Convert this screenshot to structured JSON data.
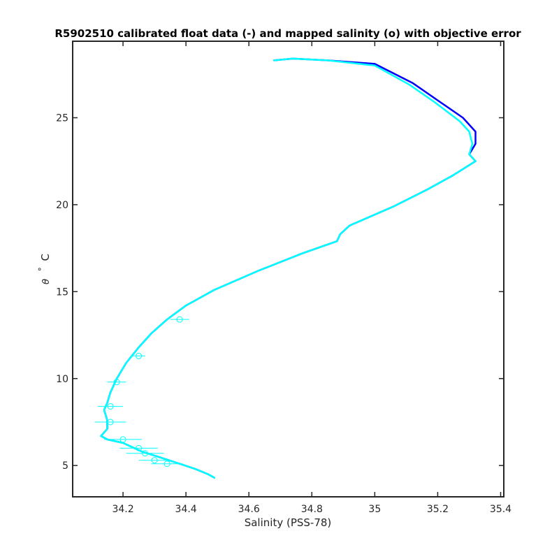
{
  "chart_data": {
    "type": "line",
    "title": "R5902510 calibrated float data (-) and mapped salinity (o) with objective error",
    "xlabel": "Salinity (PSS-78)",
    "ylabel_symbol": "θ",
    "ylabel_degree": "°",
    "ylabel_unit": "C",
    "xlim": [
      34.04,
      35.41
    ],
    "ylim": [
      3.2,
      29.4
    ],
    "xticks": [
      34.2,
      34.4,
      34.6,
      34.8,
      35,
      35.2,
      35.4
    ],
    "xtick_labels": [
      "34.2",
      "34.4",
      "34.6",
      "34.8",
      "35",
      "35.2",
      "35.4"
    ],
    "yticks": [
      5,
      10,
      15,
      20,
      25
    ],
    "ytick_labels": [
      "5",
      "10",
      "15",
      "20",
      "25"
    ],
    "grid": false,
    "colors": {
      "float_line": "#0000ff",
      "calibrated_line": "#00ffff",
      "axes": "#262626"
    },
    "series": [
      {
        "key": "float",
        "color": "#0000ff",
        "x": [
          34.68,
          34.74,
          34.85,
          35.0,
          35.12,
          35.2,
          35.28,
          35.32,
          35.32,
          35.3,
          35.32,
          35.25,
          35.17,
          35.06,
          34.92,
          34.89,
          34.88,
          34.77,
          34.63,
          34.49,
          34.4,
          34.34,
          34.29,
          34.25,
          34.21,
          34.18,
          34.16,
          34.15,
          34.14,
          34.15,
          34.15,
          34.14,
          34.13,
          34.15,
          34.2,
          34.26,
          34.33,
          34.38,
          34.43,
          34.47,
          34.49
        ],
        "y": [
          28.3,
          28.4,
          28.3,
          28.1,
          27.0,
          26.0,
          25.0,
          24.2,
          23.5,
          22.9,
          22.5,
          21.7,
          20.9,
          19.9,
          18.8,
          18.3,
          17.9,
          17.2,
          16.2,
          15.1,
          14.2,
          13.4,
          12.6,
          11.8,
          10.9,
          10.0,
          9.2,
          8.6,
          8.2,
          7.6,
          7.1,
          6.9,
          6.7,
          6.5,
          6.3,
          5.8,
          5.4,
          5.1,
          4.8,
          4.5,
          4.3
        ]
      },
      {
        "key": "calibrated",
        "color": "#00ffff",
        "x": [
          34.68,
          34.74,
          34.85,
          35.0,
          35.11,
          35.19,
          35.27,
          35.3,
          35.31,
          35.3,
          35.32,
          35.25,
          35.17,
          35.06,
          34.92,
          34.89,
          34.88,
          34.77,
          34.63,
          34.49,
          34.4,
          34.34,
          34.29,
          34.25,
          34.21,
          34.18,
          34.16,
          34.15,
          34.14,
          34.15,
          34.15,
          34.14,
          34.13,
          34.15,
          34.2,
          34.26,
          34.33,
          34.38,
          34.43,
          34.47,
          34.49
        ],
        "y": [
          28.3,
          28.4,
          28.3,
          28.0,
          26.9,
          25.9,
          24.8,
          24.2,
          23.5,
          22.9,
          22.5,
          21.7,
          20.9,
          19.9,
          18.8,
          18.3,
          17.9,
          17.2,
          16.2,
          15.1,
          14.2,
          13.4,
          12.6,
          11.8,
          10.9,
          10.0,
          9.2,
          8.6,
          8.2,
          7.6,
          7.1,
          6.9,
          6.7,
          6.5,
          6.3,
          5.8,
          5.4,
          5.1,
          4.8,
          4.5,
          4.3
        ]
      }
    ],
    "mapped_points": {
      "color": "#00ffff",
      "x": [
        34.38,
        34.25,
        34.18,
        34.16,
        34.16,
        34.2,
        34.25,
        34.27,
        34.3,
        34.34
      ],
      "y": [
        13.4,
        11.3,
        9.8,
        8.4,
        7.5,
        6.5,
        6.0,
        5.7,
        5.3,
        5.1
      ],
      "error": [
        0.03,
        0.02,
        0.03,
        0.04,
        0.05,
        0.06,
        0.06,
        0.06,
        0.05,
        0.05
      ]
    }
  }
}
